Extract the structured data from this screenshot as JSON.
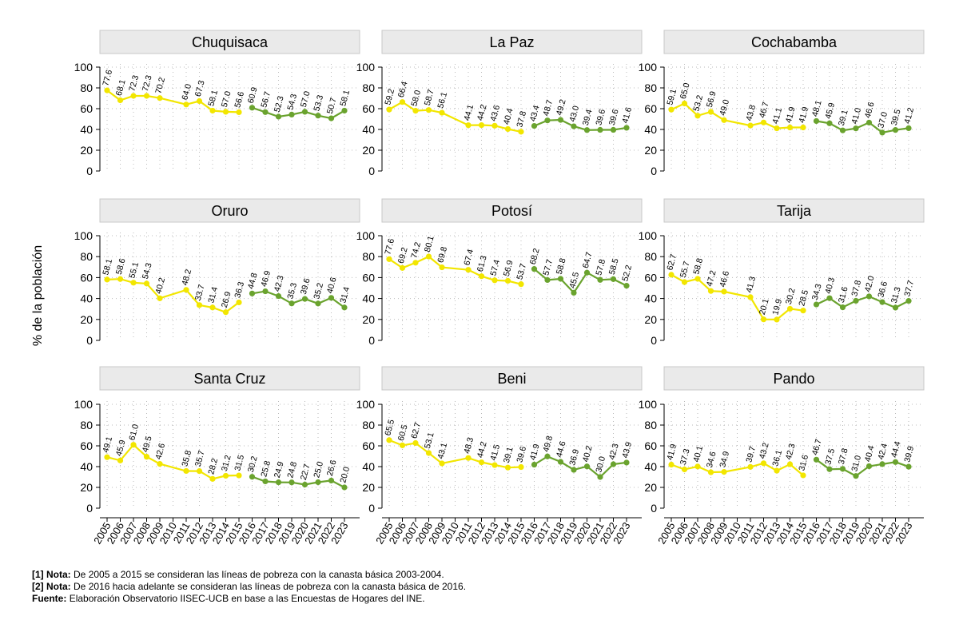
{
  "chart_data": {
    "type": "line",
    "ylabel": "% de la población",
    "ylim": [
      0,
      100
    ],
    "yticks": [
      0,
      20,
      40,
      60,
      80,
      100
    ],
    "grid": true,
    "x_labels": [
      "2005",
      "2006",
      "2007",
      "2008",
      "2009",
      "2010",
      "2011",
      "2012",
      "2013",
      "2014",
      "2015",
      "2016",
      "2017",
      "2018",
      "2019",
      "2020",
      "2021",
      "2022",
      "2023"
    ],
    "series_colors": {
      "old": "#f2e600",
      "new": "#6aa32e"
    },
    "panels": [
      {
        "name": "Chuquisaca",
        "old": {
          "x": [
            "2005",
            "2006",
            "2007",
            "2008",
            "2009",
            "2011",
            "2012",
            "2013",
            "2014",
            "2015"
          ],
          "values": [
            77.6,
            68.1,
            72.3,
            72.3,
            70.2,
            64.0,
            67.3,
            58.1,
            57.0,
            56.6
          ]
        },
        "new": {
          "x": [
            "2016",
            "2017",
            "2018",
            "2019",
            "2020",
            "2021",
            "2022",
            "2023"
          ],
          "values": [
            60.9,
            56.7,
            52.3,
            54.3,
            57.0,
            53.3,
            50.7,
            58.1
          ]
        }
      },
      {
        "name": "La Paz",
        "old": {
          "x": [
            "2005",
            "2006",
            "2007",
            "2008",
            "2009",
            "2011",
            "2012",
            "2013",
            "2014",
            "2015"
          ],
          "values": [
            59.2,
            66.4,
            58.0,
            58.7,
            56.1,
            44.1,
            44.2,
            43.6,
            40.4,
            37.8
          ]
        },
        "new": {
          "x": [
            "2016",
            "2017",
            "2018",
            "2019",
            "2020",
            "2021",
            "2022",
            "2023"
          ],
          "values": [
            43.4,
            48.7,
            49.2,
            43.0,
            39.4,
            39.6,
            39.6,
            41.6
          ]
        }
      },
      {
        "name": "Cochabamba",
        "old": {
          "x": [
            "2005",
            "2006",
            "2007",
            "2008",
            "2009",
            "2011",
            "2012",
            "2013",
            "2014",
            "2015"
          ],
          "values": [
            59.1,
            65.0,
            53.2,
            56.9,
            49.0,
            43.8,
            46.7,
            41.1,
            41.9,
            41.9
          ]
        },
        "new": {
          "x": [
            "2016",
            "2017",
            "2018",
            "2019",
            "2020",
            "2021",
            "2022",
            "2023"
          ],
          "values": [
            48.1,
            45.9,
            39.1,
            41.0,
            46.6,
            37.0,
            39.5,
            41.2
          ]
        }
      },
      {
        "name": "Oruro",
        "old": {
          "x": [
            "2005",
            "2006",
            "2007",
            "2008",
            "2009",
            "2011",
            "2012",
            "2013",
            "2014",
            "2015"
          ],
          "values": [
            58.1,
            58.6,
            55.1,
            54.3,
            40.2,
            48.2,
            33.7,
            31.4,
            26.9,
            36.3
          ]
        },
        "new": {
          "x": [
            "2016",
            "2017",
            "2018",
            "2019",
            "2020",
            "2021",
            "2022",
            "2023"
          ],
          "values": [
            44.8,
            46.9,
            42.3,
            35.3,
            39.6,
            35.2,
            40.6,
            31.4
          ]
        }
      },
      {
        "name": "Potosí",
        "old": {
          "x": [
            "2005",
            "2006",
            "2007",
            "2008",
            "2009",
            "2011",
            "2012",
            "2013",
            "2014",
            "2015"
          ],
          "values": [
            77.6,
            69.2,
            74.2,
            80.1,
            69.8,
            67.4,
            61.3,
            57.4,
            56.9,
            53.7
          ]
        },
        "new": {
          "x": [
            "2016",
            "2017",
            "2018",
            "2019",
            "2020",
            "2021",
            "2022",
            "2023"
          ],
          "values": [
            68.2,
            57.7,
            58.8,
            45.5,
            64.7,
            57.8,
            58.5,
            52.2
          ]
        }
      },
      {
        "name": "Tarija",
        "old": {
          "x": [
            "2005",
            "2006",
            "2007",
            "2008",
            "2009",
            "2011",
            "2012",
            "2013",
            "2014",
            "2015"
          ],
          "values": [
            62.7,
            55.7,
            58.8,
            47.2,
            46.6,
            41.3,
            20.1,
            19.9,
            30.2,
            28.5
          ]
        },
        "new": {
          "x": [
            "2016",
            "2017",
            "2018",
            "2019",
            "2020",
            "2021",
            "2022",
            "2023"
          ],
          "values": [
            34.3,
            40.3,
            31.6,
            37.8,
            42.0,
            36.6,
            31.3,
            37.7
          ]
        }
      },
      {
        "name": "Santa Cruz",
        "old": {
          "x": [
            "2005",
            "2006",
            "2007",
            "2008",
            "2009",
            "2011",
            "2012",
            "2013",
            "2014",
            "2015"
          ],
          "values": [
            49.1,
            45.9,
            61.0,
            49.5,
            42.6,
            35.8,
            35.7,
            28.2,
            31.2,
            31.5
          ]
        },
        "new": {
          "x": [
            "2016",
            "2017",
            "2018",
            "2019",
            "2020",
            "2021",
            "2022",
            "2023"
          ],
          "values": [
            30.2,
            25.8,
            24.9,
            24.8,
            22.7,
            25.0,
            26.6,
            20.0
          ]
        }
      },
      {
        "name": "Beni",
        "old": {
          "x": [
            "2005",
            "2006",
            "2007",
            "2008",
            "2009",
            "2011",
            "2012",
            "2013",
            "2014",
            "2015"
          ],
          "values": [
            65.5,
            60.5,
            62.7,
            53.1,
            43.1,
            48.3,
            44.2,
            41.5,
            39.1,
            39.6
          ]
        },
        "new": {
          "x": [
            "2016",
            "2017",
            "2018",
            "2019",
            "2020",
            "2021",
            "2022",
            "2023"
          ],
          "values": [
            41.9,
            49.8,
            44.6,
            36.9,
            40.2,
            30.0,
            42.3,
            43.9
          ]
        }
      },
      {
        "name": "Pando",
        "old": {
          "x": [
            "2005",
            "2006",
            "2007",
            "2008",
            "2009",
            "2011",
            "2012",
            "2013",
            "2014",
            "2015"
          ],
          "values": [
            41.9,
            37.3,
            40.1,
            34.6,
            34.9,
            39.7,
            43.2,
            36.1,
            42.3,
            31.6
          ]
        },
        "new": {
          "x": [
            "2016",
            "2017",
            "2018",
            "2019",
            "2020",
            "2021",
            "2022",
            "2023"
          ],
          "values": [
            46.7,
            37.5,
            37.8,
            31.0,
            40.4,
            42.4,
            44.4,
            39.9
          ]
        }
      }
    ]
  },
  "notes": [
    {
      "label": "[1] Nota:",
      "text": "De 2005 a 2015 se consideran las líneas de pobreza con la canasta básica 2003-2004."
    },
    {
      "label": "[2] Nota:",
      "text": "De 2016 hacia adelante se consideran las líneas de pobreza con la canasta básica de 2016."
    },
    {
      "label": "Fuente:",
      "text": "Elaboración Observatorio IISEC-UCB en base a las Encuestas de Hogares del INE."
    }
  ]
}
